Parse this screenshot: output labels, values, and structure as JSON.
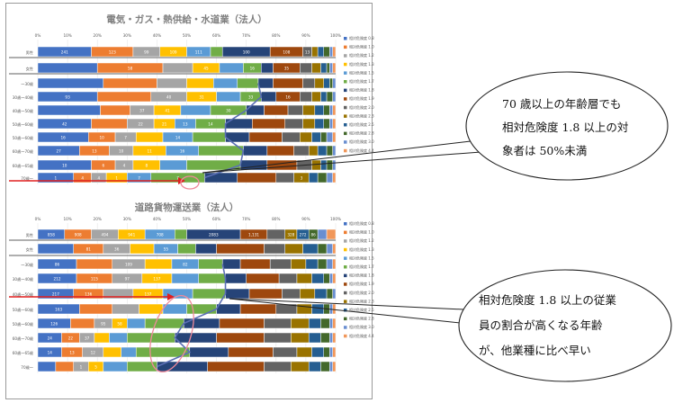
{
  "colors": {
    "legend_swatches": [
      "#4472c4",
      "#ed7d31",
      "#a5a5a5",
      "#ffc000",
      "#5b9bd5",
      "#70ad47",
      "#264478",
      "#9e480e",
      "#636363",
      "#997300",
      "#255e91",
      "#43682b",
      "#698ed0",
      "#f1975a"
    ],
    "accent_line": "#5b6fb5",
    "arrow": "#e02020",
    "circle": "#f08a9a"
  },
  "chart_data": [
    {
      "type": "bar",
      "stacked": "100%",
      "title": "電気・ガス・熱供給・水道業（法人）",
      "xlim": [
        0,
        100
      ],
      "xticks": [
        "0%",
        "10%",
        "20%",
        "30%",
        "40%",
        "50%",
        "60%",
        "70%",
        "80%",
        "90%",
        "100%"
      ],
      "categories": [
        "男性",
        "女性",
        "〜30歳",
        "30歳〜40歳",
        "40歳〜50歳",
        "50歳〜60歳",
        "50歳〜60歳",
        "60歳〜70歳",
        "60歳〜65歳",
        "70歳〜"
      ],
      "legend": [
        "相対危険度 0.8",
        "相対危険度 1.0",
        "相対危険度 1.2",
        "相対危険度 1.3",
        "相対危険度 1.5",
        "相対危険度 1.7",
        "相対危険度 1.8",
        "相対危険度 1.9",
        "相対危険度 2.0",
        "相対危険度 2.3",
        "相対危険度 2.5",
        "相対危険度 2.8",
        "相対危険度 3.0",
        "相対危険度 4.4"
      ],
      "legend_placement": "right",
      "rows": [
        {
          "shares": [
            18,
            14,
            9,
            9,
            8,
            4,
            16,
            11,
            3,
            2,
            2,
            2,
            1,
            1
          ],
          "labels": [
            "241",
            "123",
            "99",
            "109",
            "111",
            "",
            "100",
            "108",
            "13",
            "28",
            "98",
            "80",
            "",
            ""
          ]
        },
        {
          "shares": [
            20,
            22,
            10,
            9,
            8,
            6,
            4,
            9,
            4,
            3,
            2,
            1,
            1,
            1
          ],
          "labels": [
            "",
            "58",
            "",
            "45",
            "",
            "16",
            "",
            "35",
            "",
            "",
            "",
            "",
            "",
            ""
          ]
        },
        {
          "shares": [
            22,
            18,
            10,
            9,
            8,
            7,
            5,
            10,
            4,
            3,
            2,
            1,
            1,
            0
          ],
          "labels": [
            "",
            "",
            "",
            "",
            "",
            "",
            "",
            "",
            "",
            "",
            "",
            "",
            "",
            ""
          ]
        },
        {
          "shares": [
            20,
            18,
            12,
            10,
            8,
            7,
            5,
            8,
            4,
            3,
            2,
            2,
            1,
            0
          ],
          "labels": [
            "93",
            "",
            "40",
            "31",
            "",
            "33",
            "",
            "16",
            "",
            "",
            "",
            "",
            "",
            ""
          ]
        },
        {
          "shares": [
            21,
            10,
            8,
            9,
            10,
            12,
            6,
            8,
            5,
            4,
            3,
            2,
            1,
            1
          ],
          "labels": [
            "",
            "",
            "37",
            "41",
            "",
            "30",
            "",
            "",
            "",
            "",
            "",
            "",
            "",
            ""
          ]
        },
        {
          "shares": [
            18,
            12,
            9,
            7,
            7,
            10,
            9,
            11,
            6,
            4,
            3,
            2,
            1,
            1
          ],
          "labels": [
            "42",
            "",
            "22",
            "21",
            "13",
            "14",
            "",
            "",
            "",
            "",
            "",
            "",
            "",
            ""
          ]
        },
        {
          "shares": [
            17,
            9,
            7,
            9,
            10,
            11,
            8,
            11,
            6,
            4,
            3,
            2,
            2,
            1
          ],
          "labels": [
            "16",
            "10",
            "7",
            "",
            "14",
            "",
            "",
            "",
            "",
            "",
            "",
            "",
            "",
            ""
          ]
        },
        {
          "shares": [
            14,
            10,
            8,
            11,
            11,
            15,
            8,
            9,
            5,
            3,
            3,
            2,
            1,
            0
          ],
          "labels": [
            "27",
            "13",
            "10",
            "11",
            "16",
            "",
            "",
            "",
            "",
            "",
            "",
            "",
            "",
            ""
          ]
        },
        {
          "shares": [
            18,
            8,
            6,
            9,
            9,
            18,
            9,
            10,
            5,
            3,
            2,
            2,
            1,
            0
          ],
          "labels": [
            "10",
            "6",
            "4",
            "8",
            "",
            "",
            "",
            "",
            "",
            "",
            "",
            "",
            "",
            ""
          ]
        },
        {
          "shares": [
            12,
            6,
            5,
            7,
            8,
            18,
            11,
            13,
            6,
            5,
            3,
            3,
            2,
            1
          ],
          "labels": [
            "1",
            "4",
            "4",
            "1",
            "7",
            "7",
            "",
            "",
            "",
            "3",
            "",
            "",
            "",
            ""
          ]
        }
      ]
    },
    {
      "type": "bar",
      "stacked": "100%",
      "title": "道路貨物運送業（法人）",
      "xlim": [
        0,
        100
      ],
      "xticks": [
        "0%",
        "10%",
        "20%",
        "30%",
        "40%",
        "50%",
        "60%",
        "70%",
        "80%",
        "90%",
        "100%"
      ],
      "categories": [
        "男性",
        "女性",
        "〜30歳",
        "30歳〜40歳",
        "40歳〜50歳",
        "50歳〜60歳",
        "50歳〜60歳",
        "60歳〜70歳",
        "60歳〜65歳",
        "70歳〜"
      ],
      "legend": [
        "相対危険度 0.8",
        "相対危険度 1.0",
        "相対危険度 1.2",
        "相対危険度 1.3",
        "相対危険度 1.5",
        "相対危険度 1.7",
        "相対危険度 1.8",
        "相対危険度 1.9",
        "相対危険度 2.0",
        "相対危険度 2.3",
        "相対危険度 2.5",
        "相対危険度 2.8",
        "相対危険度 3.0",
        "相対危険度 4.4"
      ],
      "legend_placement": "right",
      "rows": [
        {
          "shares": [
            9,
            9,
            9,
            9,
            10,
            4,
            18,
            9,
            6,
            4,
            4,
            3,
            3,
            3
          ],
          "labels": [
            "858",
            "908",
            "494",
            "941",
            "708",
            "",
            "2083",
            "1,131",
            "",
            "328",
            "272",
            "86",
            "",
            ""
          ]
        },
        {
          "shares": [
            12,
            10,
            9,
            8,
            8,
            6,
            7,
            16,
            7,
            6,
            5,
            3,
            2,
            1
          ],
          "labels": [
            "",
            "81",
            "36",
            "",
            "55",
            "",
            "",
            "",
            "",
            "",
            "",
            "",
            "",
            ""
          ]
        },
        {
          "shares": [
            13,
            12,
            11,
            9,
            9,
            8,
            6,
            10,
            7,
            5,
            4,
            3,
            2,
            1
          ],
          "labels": [
            "86",
            "",
            "109",
            "",
            "82",
            "",
            "",
            "",
            "",
            "",
            "",
            "",
            "",
            ""
          ]
        },
        {
          "shares": [
            13,
            12,
            10,
            10,
            9,
            9,
            7,
            11,
            6,
            5,
            4,
            2,
            1,
            1
          ],
          "labels": [
            "212",
            "115",
            "97",
            "137",
            "",
            "",
            "",
            "",
            "",
            "",
            "",
            "",
            "",
            ""
          ]
        },
        {
          "shares": [
            12,
            10,
            10,
            10,
            10,
            11,
            8,
            11,
            6,
            5,
            4,
            2,
            1,
            0
          ],
          "labels": [
            "217",
            "136",
            "",
            "137",
            "",
            "",
            "",
            "",
            "",
            "",
            "",
            "",
            "",
            ""
          ]
        },
        {
          "shares": [
            14,
            11,
            9,
            8,
            8,
            10,
            8,
            12,
            7,
            5,
            4,
            2,
            1,
            1
          ],
          "labels": [
            "163",
            "",
            "",
            "",
            "",
            "",
            "",
            "",
            "",
            "",
            "",
            "",
            "",
            ""
          ]
        },
        {
          "shares": [
            11,
            8,
            6,
            5,
            6,
            13,
            12,
            15,
            9,
            6,
            4,
            3,
            1,
            1
          ],
          "labels": [
            "126",
            "",
            "95",
            "58",
            "",
            "",
            "",
            "",
            "",
            "",
            "",
            "",
            "",
            ""
          ]
        },
        {
          "shares": [
            8,
            6,
            5,
            5,
            6,
            16,
            14,
            16,
            9,
            6,
            4,
            3,
            1,
            1
          ],
          "labels": [
            "24",
            "22",
            "37",
            "",
            "",
            "",
            "",
            "",
            "",
            "",
            "",
            "",
            "",
            ""
          ]
        },
        {
          "shares": [
            8,
            7,
            7,
            6,
            5,
            18,
            13,
            15,
            8,
            5,
            4,
            2,
            1,
            1
          ],
          "labels": [
            "14",
            "13",
            "12",
            "",
            "",
            "",
            "",
            "",
            "",
            "",
            "",
            "",
            "",
            ""
          ]
        },
        {
          "shares": [
            6,
            6,
            5,
            5,
            8,
            10,
            17,
            19,
            9,
            6,
            4,
            3,
            1,
            1
          ],
          "labels": [
            "",
            "",
            "1",
            "5",
            "",
            "",
            "",
            "",
            "",
            "",
            "",
            "",
            "",
            ""
          ]
        }
      ]
    }
  ],
  "callouts": [
    {
      "lines": [
        "70 歳以上の年齢層でも",
        "相対危険度 1.8 以上の対",
        "象者は 50%未満"
      ]
    },
    {
      "lines": [
        "相対危険度 1.8 以上の従業",
        "員の割合が高くなる年齢",
        "が、他業種に比べ早い"
      ]
    }
  ]
}
